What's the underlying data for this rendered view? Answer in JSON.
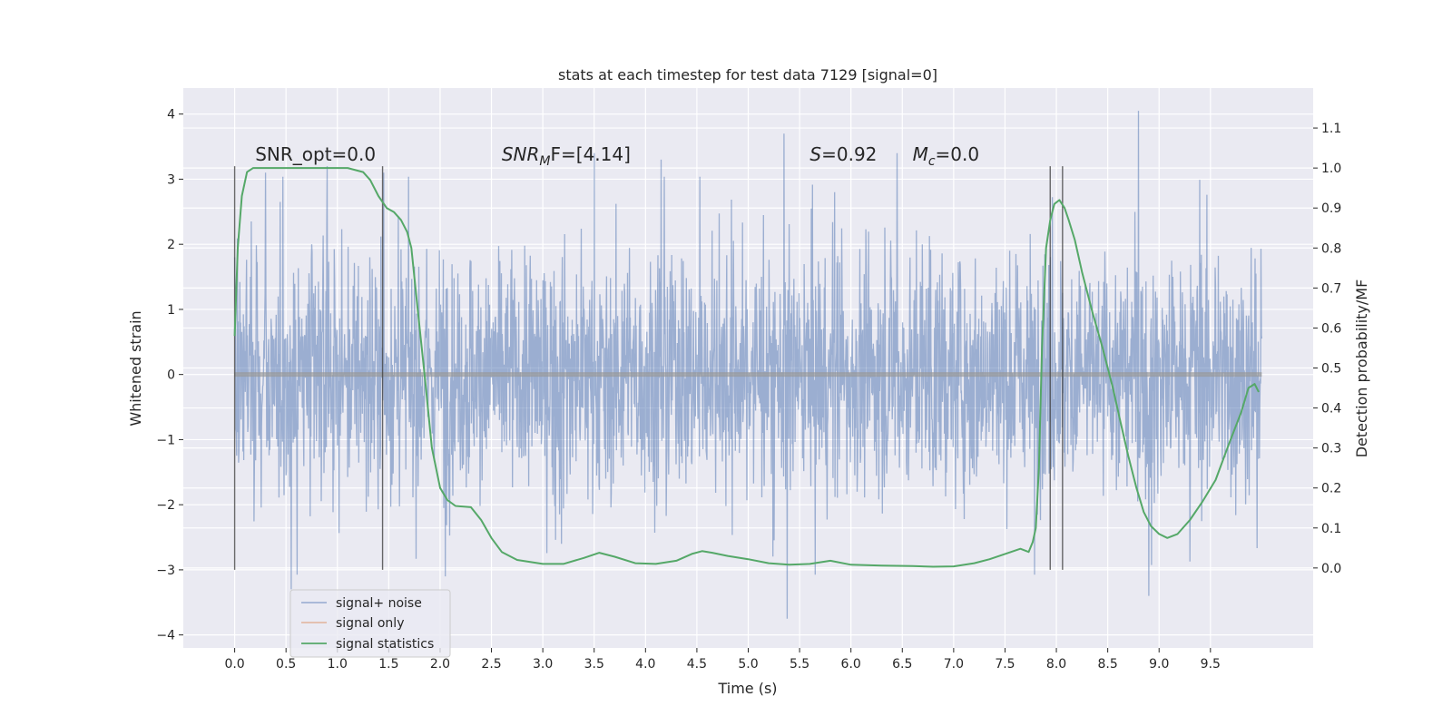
{
  "chart_data": {
    "type": "line",
    "title": "stats at each timestep for test data 7129 [signal=0]",
    "xlabel": "Time (s)",
    "ylabel": "Whitened strain",
    "y2label": "Detection probability/MF",
    "xlim": [
      -0.5,
      10.5
    ],
    "ylim": [
      -4.2,
      4.4
    ],
    "y2lim": [
      -0.2,
      1.2
    ],
    "x_ticks": [
      "0.0",
      "0.5",
      "1.0",
      "1.5",
      "2.0",
      "2.5",
      "3.0",
      "3.5",
      "4.0",
      "4.5",
      "5.0",
      "5.5",
      "6.0",
      "6.5",
      "7.0",
      "7.5",
      "8.0",
      "8.5",
      "9.0",
      "9.5"
    ],
    "y_ticks": [
      "−4",
      "−3",
      "−2",
      "−1",
      "0",
      "1",
      "2",
      "3",
      "4"
    ],
    "y2_ticks": [
      "0.0",
      "0.1",
      "0.2",
      "0.3",
      "0.4",
      "0.5",
      "0.6",
      "0.7",
      "0.8",
      "0.9",
      "1.0",
      "1.1"
    ],
    "grid": true,
    "legend_position": "lower-left",
    "annotations": [
      {
        "x": 0.2,
        "y": 3.2,
        "text": "SNR_opt=0.0"
      },
      {
        "x": 2.6,
        "y": 3.2,
        "text_main": "SNR",
        "text_sub": "M",
        "text_rest": "F=[4.14]"
      },
      {
        "x": 5.6,
        "y": 3.2,
        "text_main": "S",
        "text_rest": "=0.92"
      },
      {
        "x": 6.6,
        "y": 3.2,
        "text_main": "M",
        "text_sub": "c",
        "text_rest": "=0.0"
      }
    ],
    "vlines": [
      {
        "x": 0.0,
        "y0": -3.0,
        "y1": 3.2
      },
      {
        "x": 1.44,
        "y0": -3.0,
        "y1": 3.2
      },
      {
        "x": 7.94,
        "y0": -3.0,
        "y1": 3.2
      },
      {
        "x": 8.06,
        "y0": -3.0,
        "y1": 3.2
      }
    ],
    "series": [
      {
        "name": "signal+ noise",
        "color": "#4c72b0",
        "alpha": 0.5,
        "kind": "noise",
        "x_range": [
          0.0,
          10.0
        ],
        "typical_amplitude": 1.3,
        "max_value": 4.05,
        "min_value": -3.75,
        "peaks": [
          {
            "x": 0.0,
            "y": 1.8
          },
          {
            "x": 0.3,
            "y": 3.1
          },
          {
            "x": 0.55,
            "y": -3.3
          },
          {
            "x": 0.9,
            "y": 3.2
          },
          {
            "x": 1.45,
            "y": 3.1
          },
          {
            "x": 2.05,
            "y": -3.1
          },
          {
            "x": 3.5,
            "y": 3.4
          },
          {
            "x": 4.15,
            "y": 3.3
          },
          {
            "x": 5.35,
            "y": 3.7
          },
          {
            "x": 5.38,
            "y": -3.75
          },
          {
            "x": 6.45,
            "y": 3.4
          },
          {
            "x": 8.8,
            "y": 4.05
          },
          {
            "x": 8.9,
            "y": -3.4
          }
        ]
      },
      {
        "name": "signal only",
        "color": "#dd8452",
        "x": [
          0.0,
          10.0
        ],
        "values": [
          0.0,
          0.0
        ]
      },
      {
        "name": "signal statistics",
        "color": "#55a868",
        "axis": "right",
        "x": [
          0.0,
          0.03,
          0.07,
          0.12,
          0.18,
          0.3,
          0.5,
          0.8,
          1.1,
          1.25,
          1.32,
          1.4,
          1.48,
          1.55,
          1.62,
          1.68,
          1.72,
          1.78,
          1.85,
          1.92,
          2.0,
          2.07,
          2.15,
          2.3,
          2.4,
          2.5,
          2.6,
          2.75,
          3.0,
          3.2,
          3.4,
          3.55,
          3.7,
          3.9,
          4.1,
          4.3,
          4.45,
          4.55,
          4.65,
          4.8,
          5.0,
          5.2,
          5.4,
          5.6,
          5.8,
          6.0,
          6.3,
          6.6,
          6.8,
          7.0,
          7.2,
          7.35,
          7.5,
          7.65,
          7.73,
          7.77,
          7.8,
          7.83,
          7.86,
          7.9,
          7.94,
          7.98,
          8.03,
          8.08,
          8.12,
          8.18,
          8.25,
          8.35,
          8.45,
          8.55,
          8.62,
          8.7,
          8.78,
          8.85,
          8.92,
          9.0,
          9.08,
          9.18,
          9.3,
          9.42,
          9.55,
          9.68,
          9.8,
          9.87,
          9.93,
          9.97
        ],
        "values": [
          0.58,
          0.8,
          0.93,
          0.99,
          1.0,
          1.0,
          1.0,
          1.0,
          1.0,
          0.99,
          0.97,
          0.93,
          0.9,
          0.89,
          0.87,
          0.84,
          0.8,
          0.65,
          0.48,
          0.3,
          0.2,
          0.17,
          0.155,
          0.152,
          0.12,
          0.075,
          0.04,
          0.02,
          0.01,
          0.01,
          0.025,
          0.038,
          0.028,
          0.012,
          0.01,
          0.018,
          0.035,
          0.042,
          0.038,
          0.03,
          0.022,
          0.012,
          0.008,
          0.01,
          0.018,
          0.008,
          0.006,
          0.005,
          0.003,
          0.004,
          0.012,
          0.022,
          0.035,
          0.048,
          0.04,
          0.065,
          0.1,
          0.25,
          0.55,
          0.8,
          0.87,
          0.91,
          0.92,
          0.9,
          0.87,
          0.82,
          0.74,
          0.64,
          0.55,
          0.45,
          0.37,
          0.28,
          0.2,
          0.14,
          0.105,
          0.085,
          0.075,
          0.085,
          0.12,
          0.165,
          0.22,
          0.31,
          0.39,
          0.45,
          0.46,
          0.44
        ]
      }
    ]
  }
}
